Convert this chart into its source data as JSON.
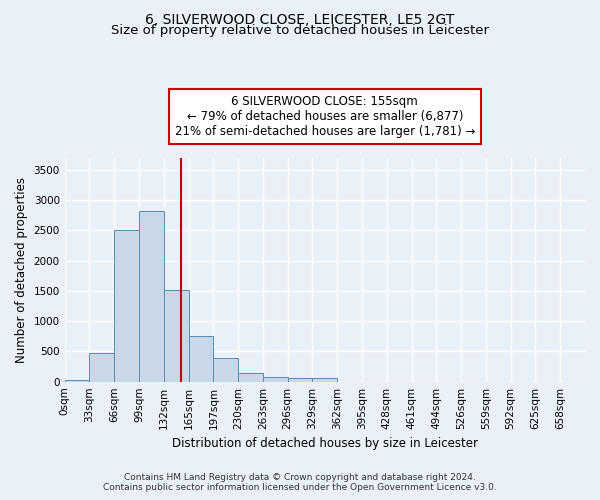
{
  "title": "6, SILVERWOOD CLOSE, LEICESTER, LE5 2GT",
  "subtitle": "Size of property relative to detached houses in Leicester",
  "xlabel": "Distribution of detached houses by size in Leicester",
  "ylabel": "Number of detached properties",
  "bin_labels": [
    "0sqm",
    "33sqm",
    "66sqm",
    "99sqm",
    "132sqm",
    "165sqm",
    "197sqm",
    "230sqm",
    "263sqm",
    "296sqm",
    "329sqm",
    "362sqm",
    "395sqm",
    "428sqm",
    "461sqm",
    "494sqm",
    "526sqm",
    "559sqm",
    "592sqm",
    "625sqm",
    "658sqm"
  ],
  "bar_heights": [
    30,
    470,
    2510,
    2820,
    1510,
    750,
    390,
    140,
    70,
    55,
    55,
    0,
    0,
    0,
    0,
    0,
    0,
    0,
    0,
    0,
    0
  ],
  "bar_color": "#c8d8e8",
  "bar_edge_color": "#5a8ab0",
  "vline_color": "#cc0000",
  "annotation_text": "6 SILVERWOOD CLOSE: 155sqm\n← 79% of detached houses are smaller (6,877)\n21% of semi-detached houses are larger (1,781) →",
  "annotation_box_color": "white",
  "annotation_box_edge_color": "#cc0000",
  "ylim": [
    0,
    3700
  ],
  "yticks": [
    0,
    500,
    1000,
    1500,
    2000,
    2500,
    3000,
    3500
  ],
  "footer_line1": "Contains HM Land Registry data © Crown copyright and database right 2024.",
  "footer_line2": "Contains public sector information licensed under the Open Government Licence v3.0.",
  "bg_color": "#eaf0f8",
  "plot_bg_color": "#eaf0f8",
  "grid_color": "white",
  "title_fontsize": 10,
  "subtitle_fontsize": 9.5,
  "axis_label_fontsize": 8.5,
  "tick_fontsize": 7.5,
  "annotation_fontsize": 8.5,
  "footer_fontsize": 6.5
}
